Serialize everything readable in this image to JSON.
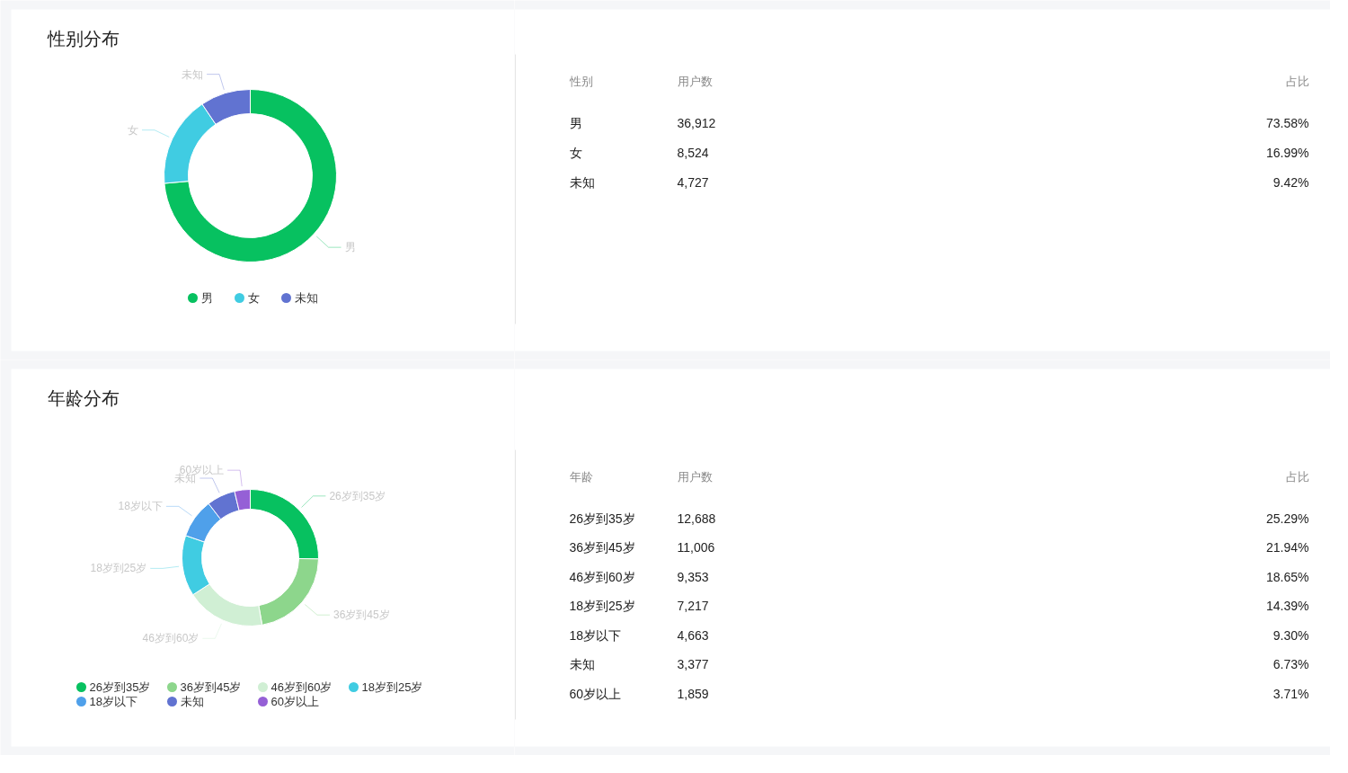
{
  "chart_data": [
    {
      "type": "donut",
      "title": "性别分布",
      "categories": [
        "男",
        "女",
        "未知"
      ],
      "values": [
        73.58,
        16.99,
        9.42
      ],
      "colors": [
        "#07c160",
        "#40cce2",
        "#6173d1"
      ],
      "legend": "bottom"
    },
    {
      "type": "other",
      "annotations": [
        "性别",
        "用户数",
        "占比",
        "男",
        "36,912",
        "73.58%",
        "女",
        "8,524",
        "16.99%",
        "未知",
        "4,727",
        "9.42%"
      ]
    },
    {
      "type": "donut",
      "title": "年龄分布",
      "categories": [
        "26岁到35岁",
        "36岁到45岁",
        "46岁到60岁",
        "18岁到25岁",
        "18岁以下",
        "未知",
        "60岁以上"
      ],
      "values": [
        25.29,
        21.94,
        18.65,
        14.39,
        9.3,
        6.73,
        3.71
      ],
      "colors": [
        "#07c160",
        "#8dd68c",
        "#d0efd4",
        "#40cce2",
        "#4fa0ea",
        "#6173d1",
        "#9560d6"
      ],
      "legend": "bottom"
    },
    {
      "type": "other",
      "annotations": [
        "年龄",
        "用户数",
        "占比",
        "26岁到35岁",
        "12,688",
        "25.29%",
        "36岁到45岁",
        "11,006",
        "21.94%",
        "46岁到60岁",
        "9,353",
        "18.65%",
        "18岁到25岁",
        "7,217",
        "14.39%",
        "18岁以下",
        "4,663",
        "9.30%",
        "未知",
        "3,377",
        "6.73%",
        "60岁以上",
        "1,859",
        "3.71%"
      ]
    }
  ]
}
